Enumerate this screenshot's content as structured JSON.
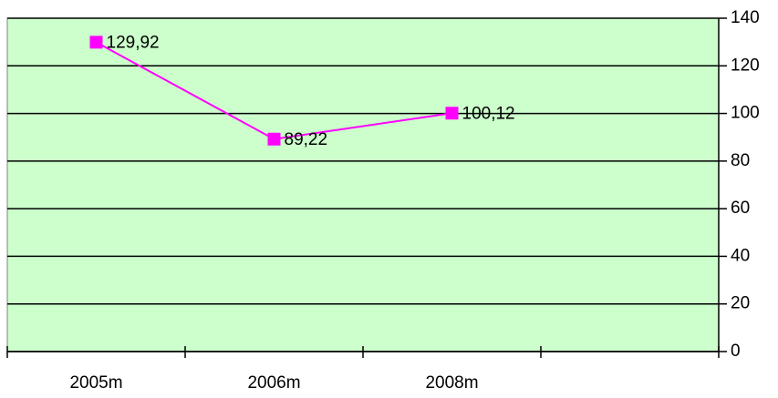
{
  "chart_data": {
    "type": "line",
    "categories": [
      "2005m",
      "2006m",
      "2008m",
      null
    ],
    "values": [
      129.92,
      89.22,
      100.12,
      null
    ],
    "value_labels": [
      "129,92",
      "89,22",
      "100,12",
      null
    ],
    "color": "#ff00ff",
    "plot_background": "#ccffcc",
    "ylim": [
      0,
      140
    ],
    "yticks": [
      0,
      20,
      40,
      60,
      80,
      100,
      120,
      140
    ],
    "y_axis_side": "right",
    "grid": true
  }
}
